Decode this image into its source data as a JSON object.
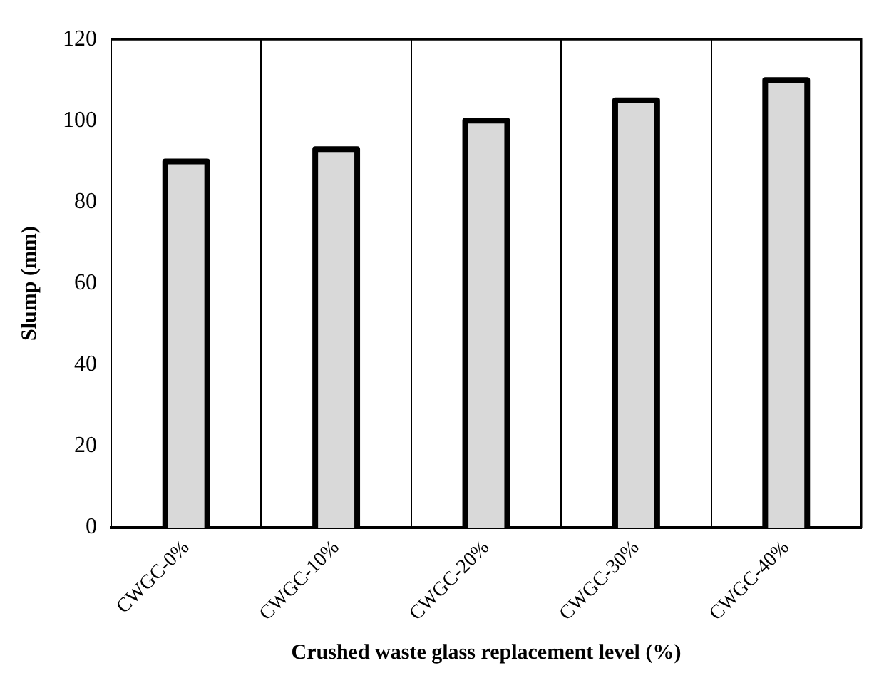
{
  "chart_data": {
    "type": "bar",
    "xlabel": "Crushed waste glass replacement level (%)",
    "ylabel": "Slump (mm)",
    "categories": [
      "CWGC-0%",
      "CWGC-10%",
      "CWGC-20%",
      "CWGC-30%",
      "CWGC-40%"
    ],
    "values": [
      90,
      93,
      100,
      105,
      110
    ],
    "color": "#d9d9d9",
    "ylim": [
      0,
      120
    ],
    "yticks": [
      0,
      20,
      40,
      60,
      80,
      100,
      120
    ],
    "grid": "x"
  }
}
